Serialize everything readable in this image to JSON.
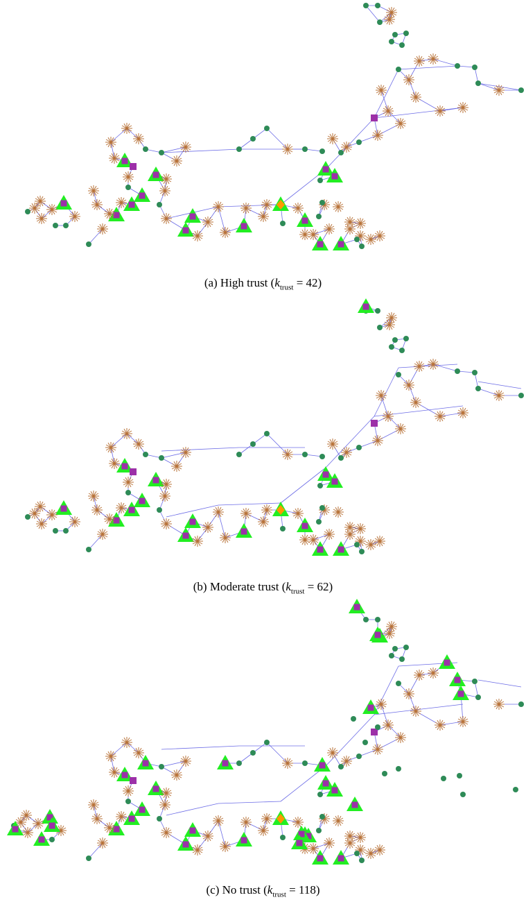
{
  "colors": {
    "edge": "#6b6be6",
    "node": "#2e8b57",
    "star": "#b8733a",
    "square": "#9c30a8",
    "triangle": "#22ee22",
    "diamond": "#ff9900"
  },
  "panels": [
    {
      "id": "a",
      "caption_prefix": "(a) High trust (",
      "k_symbol": "k",
      "k_sub": "trust",
      "k_value": " = 42)"
    },
    {
      "id": "b",
      "caption_prefix": "(b) Moderate trust (",
      "k_symbol": "k",
      "k_sub": "trust",
      "k_value": " = 62)"
    },
    {
      "id": "c",
      "caption_prefix": "(c) No trust (",
      "k_symbol": "k",
      "k_sub": "trust",
      "k_value": " = 118)"
    }
  ]
}
